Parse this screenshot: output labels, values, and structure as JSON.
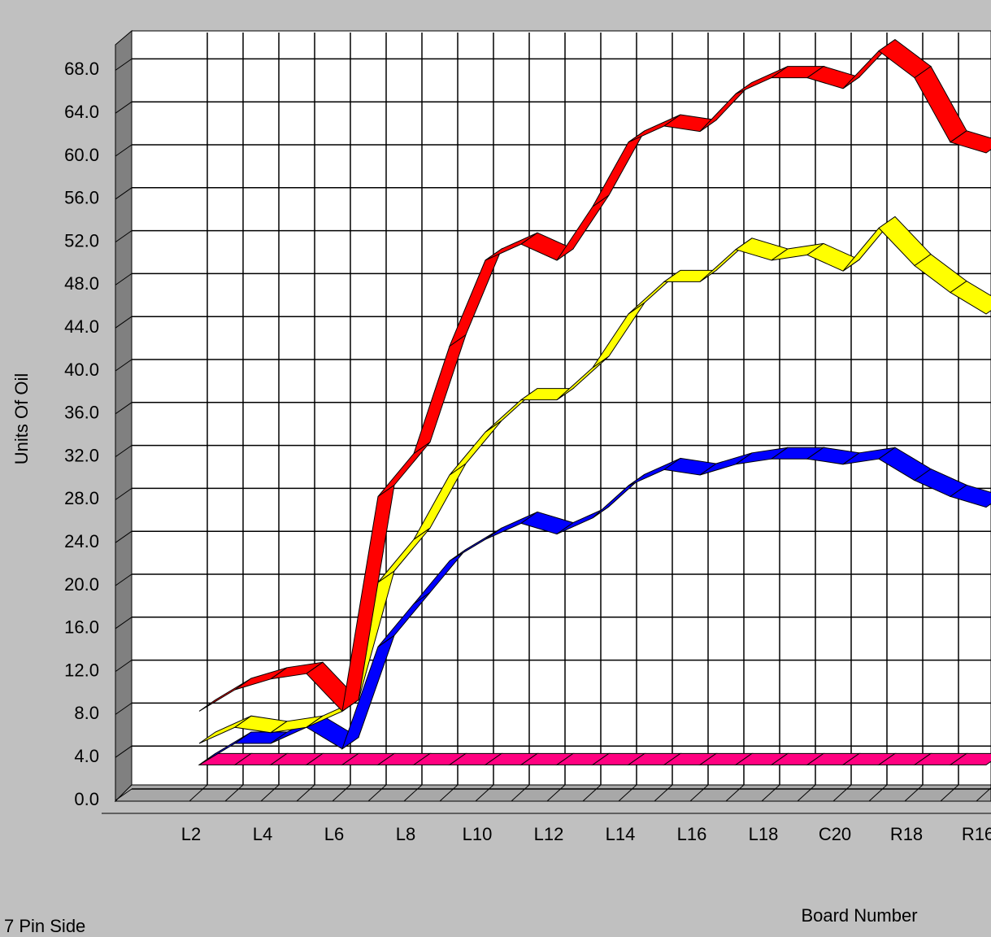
{
  "chart_data": {
    "type": "line",
    "y_label": "Units Of Oil",
    "x_label": "Board Number",
    "footer": "7 Pin Side",
    "categories": [
      "L2",
      null,
      "L4",
      null,
      "L6",
      null,
      "L8",
      null,
      "L10",
      null,
      "L12",
      null,
      "L14",
      null,
      "L16",
      null,
      "L18",
      null,
      "C20",
      null,
      "R18",
      null,
      "R16"
    ],
    "series": [
      {
        "color": "#ff0000",
        "values": [
          8,
          10,
          11,
          11.5,
          8,
          28,
          32,
          42,
          50,
          51.5,
          50,
          55,
          61,
          62.5,
          62,
          65.5,
          67,
          67,
          66,
          69.5,
          67,
          61,
          60
        ]
      },
      {
        "color": "#ffff00",
        "values": [
          5,
          6.5,
          6,
          6.5,
          8,
          20,
          24,
          30,
          34,
          37,
          37,
          40,
          45,
          48,
          48,
          51,
          50,
          50.5,
          49,
          53,
          49.5,
          47,
          45
        ]
      },
      {
        "color": "#0000ff",
        "values": [
          3,
          5,
          5,
          6.5,
          4.5,
          14,
          18,
          22,
          24,
          25.5,
          24.5,
          26,
          29,
          30.5,
          30,
          31,
          31.5,
          31.5,
          31,
          31.5,
          29.5,
          28,
          27
        ]
      },
      {
        "color": "#ff0080",
        "values": [
          3,
          3,
          3,
          3,
          3,
          3,
          3,
          3,
          3,
          3,
          3,
          3,
          3,
          3,
          3,
          3,
          3,
          3,
          3,
          3,
          3,
          3,
          3
        ]
      }
    ],
    "ylim": [
      0,
      70
    ],
    "yticks": [
      {
        "value": 0,
        "label": "0.0"
      },
      {
        "value": 4,
        "label": "4.0"
      },
      {
        "value": 8,
        "label": "8.0"
      },
      {
        "value": 12,
        "label": "12.0"
      },
      {
        "value": 16,
        "label": "16.0"
      },
      {
        "value": 20,
        "label": "20.0"
      },
      {
        "value": 24,
        "label": "24.0"
      },
      {
        "value": 28,
        "label": "28.0"
      },
      {
        "value": 32,
        "label": "32.0"
      },
      {
        "value": 36,
        "label": "36.0"
      },
      {
        "value": 40,
        "label": "40.0"
      },
      {
        "value": 44,
        "label": "44.0"
      },
      {
        "value": 48,
        "label": "48.0"
      },
      {
        "value": 52,
        "label": "52.0"
      },
      {
        "value": 56,
        "label": "56.0"
      },
      {
        "value": 60,
        "label": "60.0"
      },
      {
        "value": 64,
        "label": "64.0"
      },
      {
        "value": 68,
        "label": "68.0"
      }
    ],
    "grid": true
  }
}
